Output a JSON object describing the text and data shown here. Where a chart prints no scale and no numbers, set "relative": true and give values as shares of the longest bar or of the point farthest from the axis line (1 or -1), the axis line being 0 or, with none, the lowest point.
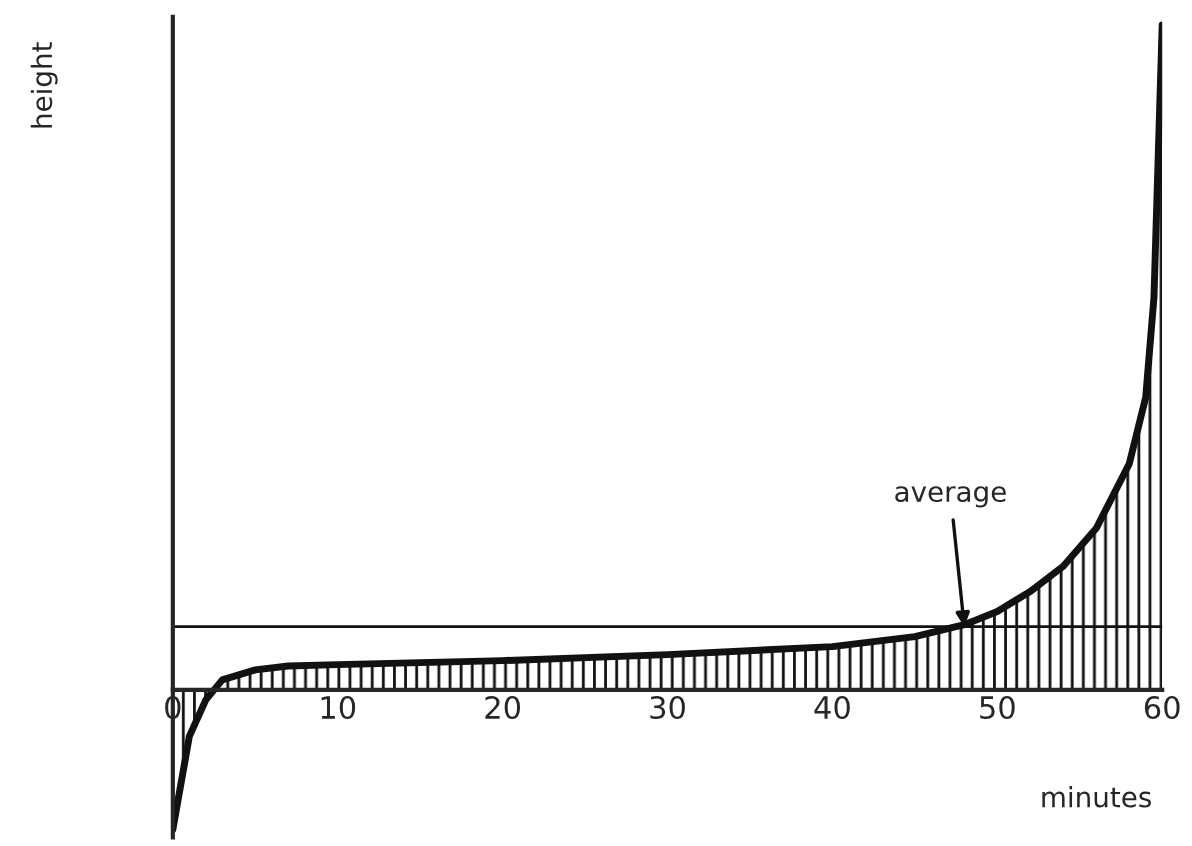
{
  "chart_data": {
    "type": "area",
    "relative": true,
    "xlabel": "minutes",
    "ylabel": "height",
    "x": [
      0,
      1,
      2,
      3,
      5,
      7,
      10,
      20,
      30,
      40,
      45,
      48,
      50,
      52,
      54,
      56,
      58,
      59,
      59.5,
      60
    ],
    "series": [
      {
        "color": "#111111",
        "values": [
          -0.21,
          -0.07,
          -0.015,
          0.015,
          0.03,
          0.036,
          0.038,
          0.044,
          0.053,
          0.065,
          0.08,
          0.098,
          0.118,
          0.148,
          0.186,
          0.243,
          0.34,
          0.44,
          0.59,
          1.0
        ]
      }
    ],
    "xlim": [
      0,
      60
    ],
    "xticks": [
      0,
      10,
      20,
      30,
      40,
      50,
      60
    ],
    "ref_lines": [
      {
        "axis": "y",
        "value": 0.095,
        "color": "#111111"
      }
    ],
    "annotations": [
      {
        "text": "average",
        "x": 48,
        "y": 0.095
      }
    ],
    "grid": false
  }
}
